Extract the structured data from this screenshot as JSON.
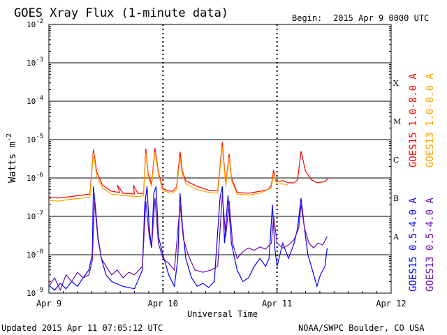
{
  "header": {
    "title": "GOES Xray Flux (1-minute data)",
    "begin_label": "Begin:",
    "begin_value": "2015 Apr 9 0000 UTC"
  },
  "footer": {
    "updated": "Updated 2015 Apr 11 07:05:12 UTC",
    "credit": "NOAA/SWPC Boulder, CO USA"
  },
  "chart_data": {
    "type": "line",
    "title": "GOES Xray Flux (1-minute data)",
    "xlabel": "Universal Time",
    "ylabel": "Watts m",
    "ylabel_superscript": "-2",
    "yscale": "log",
    "ylim": [
      1e-09,
      0.01
    ],
    "xlim_days": [
      0,
      3
    ],
    "y_ticks": [
      {
        "value": 1e-09,
        "base": "10",
        "exp": "-9"
      },
      {
        "value": 1e-08,
        "base": "10",
        "exp": "-8"
      },
      {
        "value": 1e-07,
        "base": "10",
        "exp": "-7"
      },
      {
        "value": 1e-06,
        "base": "10",
        "exp": "-6"
      },
      {
        "value": 1e-05,
        "base": "10",
        "exp": "-5"
      },
      {
        "value": 0.0001,
        "base": "10",
        "exp": "-4"
      },
      {
        "value": 0.001,
        "base": "10",
        "exp": "-3"
      },
      {
        "value": 0.01,
        "base": "10",
        "exp": "-2"
      }
    ],
    "x_ticks": [
      {
        "day": 0,
        "label": "Apr 9"
      },
      {
        "day": 1,
        "label": "Apr 10"
      },
      {
        "day": 2,
        "label": "Apr 11"
      },
      {
        "day": 3,
        "label": "Apr 12"
      }
    ],
    "flare_classes": [
      {
        "label": "A",
        "value": 3e-08
      },
      {
        "label": "B",
        "value": 3e-07
      },
      {
        "label": "C",
        "value": 3e-06
      },
      {
        "label": "M",
        "value": 3e-05
      },
      {
        "label": "X",
        "value": 0.0003
      }
    ],
    "series": [
      {
        "name": "GOES15 1.0-8.0 A",
        "color": "#ff0000",
        "points": [
          [
            0,
            3.2e-07
          ],
          [
            0.08,
            3e-07
          ],
          [
            0.2,
            3.3e-07
          ],
          [
            0.3,
            3.6e-07
          ],
          [
            0.36,
            3.8e-07
          ],
          [
            0.39,
            5.5e-06
          ],
          [
            0.42,
            1.4e-06
          ],
          [
            0.47,
            6.5e-07
          ],
          [
            0.55,
            4.5e-07
          ],
          [
            0.62,
            4.2e-07
          ],
          [
            0.6,
            6.5e-07
          ],
          [
            0.65,
            4e-07
          ],
          [
            0.75,
            3.8e-07
          ],
          [
            0.74,
            6.5e-07
          ],
          [
            0.78,
            4e-07
          ],
          [
            0.83,
            3.9e-07
          ],
          [
            0.85,
            5.8e-06
          ],
          [
            0.87,
            1.3e-06
          ],
          [
            0.9,
            7e-07
          ],
          [
            0.93,
            6e-06
          ],
          [
            0.96,
            1.4e-06
          ],
          [
            1.0,
            5.2e-07
          ],
          [
            1.05,
            4.6e-07
          ],
          [
            1.08,
            4.5e-07
          ],
          [
            1.1,
            5e-07
          ],
          [
            1.12,
            6e-07
          ],
          [
            1.15,
            4.8e-06
          ],
          [
            1.17,
            1.5e-06
          ],
          [
            1.2,
            8.5e-07
          ],
          [
            1.3,
            6e-07
          ],
          [
            1.4,
            4.8e-07
          ],
          [
            1.48,
            4.6e-07
          ],
          [
            1.52,
            8.5e-06
          ],
          [
            1.55,
            7e-07
          ],
          [
            1.58,
            4.2e-06
          ],
          [
            1.6,
            1e-06
          ],
          [
            1.65,
            4.2e-07
          ],
          [
            1.75,
            4e-07
          ],
          [
            1.85,
            4.5e-07
          ],
          [
            1.92,
            5e-07
          ],
          [
            1.95,
            6.5e-07
          ],
          [
            1.97,
            1.6e-06
          ],
          [
            1.99,
            8e-07
          ],
          [
            2.05,
            8.5e-07
          ],
          [
            2.1,
            7.5e-07
          ],
          [
            2.15,
            7.5e-07
          ],
          [
            2.18,
            9e-07
          ],
          [
            2.21,
            5e-06
          ],
          [
            2.25,
            1.5e-06
          ],
          [
            2.3,
            9e-07
          ],
          [
            2.35,
            7.5e-07
          ],
          [
            2.42,
            8e-07
          ],
          [
            2.45,
            1e-06
          ]
        ]
      },
      {
        "name": "GOES13 1.0-8.0 A",
        "color": "#ffa500",
        "points": [
          [
            0,
            2.6e-07
          ],
          [
            0.08,
            2.5e-07
          ],
          [
            0.2,
            2.8e-07
          ],
          [
            0.3,
            3e-07
          ],
          [
            0.36,
            3.2e-07
          ],
          [
            0.39,
            4.5e-06
          ],
          [
            0.42,
            1.1e-06
          ],
          [
            0.47,
            5.5e-07
          ],
          [
            0.55,
            3.8e-07
          ],
          [
            0.65,
            3.5e-07
          ],
          [
            0.75,
            3.3e-07
          ],
          [
            0.83,
            3.4e-07
          ],
          [
            0.85,
            4.5e-06
          ],
          [
            0.87,
            1.1e-06
          ],
          [
            0.9,
            6e-07
          ],
          [
            0.93,
            4.8e-06
          ],
          [
            0.96,
            1.2e-06
          ],
          [
            1.0,
            4.6e-07
          ],
          [
            1.08,
            4e-07
          ],
          [
            1.12,
            5e-07
          ],
          [
            1.15,
            3.5e-06
          ],
          [
            1.17,
            1.2e-06
          ],
          [
            1.2,
            7e-07
          ],
          [
            1.3,
            5e-07
          ],
          [
            1.4,
            4.2e-07
          ],
          [
            1.48,
            4e-07
          ],
          [
            1.52,
            6.5e-06
          ],
          [
            1.55,
            6e-07
          ],
          [
            1.58,
            3.5e-06
          ],
          [
            1.6,
            8.5e-07
          ],
          [
            1.65,
            3.8e-07
          ],
          [
            1.75,
            3.6e-07
          ],
          [
            1.85,
            4e-07
          ],
          [
            1.95,
            5.5e-07
          ],
          [
            1.97,
            1.3e-06
          ],
          [
            2.0,
            7e-07
          ],
          [
            2.05,
            7e-07
          ],
          [
            2.1,
            6.5e-07
          ]
        ]
      },
      {
        "name": "GOES15 0.5-4.0 A",
        "color": "#0000ff",
        "points": [
          [
            0,
            1.6e-09
          ],
          [
            0.05,
            1.2e-09
          ],
          [
            0.1,
            1.8e-09
          ],
          [
            0.15,
            1.3e-09
          ],
          [
            0.2,
            2e-09
          ],
          [
            0.25,
            1.5e-09
          ],
          [
            0.3,
            2.5e-09
          ],
          [
            0.35,
            4e-09
          ],
          [
            0.38,
            1e-08
          ],
          [
            0.39,
            6e-07
          ],
          [
            0.41,
            1.5e-07
          ],
          [
            0.43,
            3e-08
          ],
          [
            0.46,
            8e-09
          ],
          [
            0.5,
            3e-09
          ],
          [
            0.55,
            2e-09
          ],
          [
            0.65,
            1.5e-09
          ],
          [
            0.75,
            1.3e-09
          ],
          [
            0.82,
            4e-09
          ],
          [
            0.84,
            2e-07
          ],
          [
            0.86,
            6e-07
          ],
          [
            0.88,
            5e-08
          ],
          [
            0.9,
            1.5e-08
          ],
          [
            0.92,
            4e-07
          ],
          [
            0.94,
            6e-07
          ],
          [
            0.96,
            3e-08
          ],
          [
            1.0,
            1e-08
          ],
          [
            1.05,
            3e-09
          ],
          [
            1.1,
            1.5e-09
          ],
          [
            1.13,
            8e-09
          ],
          [
            1.15,
            4e-07
          ],
          [
            1.17,
            6e-08
          ],
          [
            1.2,
            8e-09
          ],
          [
            1.25,
            2.5e-09
          ],
          [
            1.3,
            1.5e-09
          ],
          [
            1.35,
            1.8e-09
          ],
          [
            1.4,
            1.4e-09
          ],
          [
            1.45,
            2e-09
          ],
          [
            1.5,
            3e-07
          ],
          [
            1.52,
            6e-07
          ],
          [
            1.54,
            2e-08
          ],
          [
            1.57,
            3.5e-07
          ],
          [
            1.6,
            2e-08
          ],
          [
            1.65,
            4e-09
          ],
          [
            1.7,
            2e-09
          ],
          [
            1.75,
            2.5e-09
          ],
          [
            1.8,
            5e-09
          ],
          [
            1.85,
            8e-09
          ],
          [
            1.9,
            5e-09
          ],
          [
            1.93,
            8e-09
          ],
          [
            1.96,
            2e-07
          ],
          [
            1.98,
            1.5e-08
          ],
          [
            2.0,
            5e-09
          ],
          [
            2.05,
            2e-08
          ],
          [
            2.1,
            8e-09
          ],
          [
            2.15,
            2e-08
          ],
          [
            2.18,
            5e-08
          ],
          [
            2.21,
            3e-07
          ],
          [
            2.24,
            5e-08
          ],
          [
            2.27,
            1e-08
          ],
          [
            2.3,
            5e-09
          ],
          [
            2.35,
            1.5e-09
          ],
          [
            2.38,
            3e-09
          ],
          [
            2.42,
            5e-09
          ],
          [
            2.44,
            1.5e-08
          ]
        ]
      },
      {
        "name": "GOES13 0.5-4.0 A",
        "color": "#6a0dad",
        "points": [
          [
            0,
            1.5e-09
          ],
          [
            0.05,
            2.5e-09
          ],
          [
            0.1,
            1.2e-09
          ],
          [
            0.15,
            3e-09
          ],
          [
            0.2,
            2e-09
          ],
          [
            0.25,
            3.5e-09
          ],
          [
            0.3,
            2.5e-09
          ],
          [
            0.35,
            3e-09
          ],
          [
            0.38,
            7e-09
          ],
          [
            0.4,
            2.5e-07
          ],
          [
            0.43,
            2.5e-08
          ],
          [
            0.46,
            8e-09
          ],
          [
            0.5,
            5e-09
          ],
          [
            0.55,
            3e-09
          ],
          [
            0.6,
            4e-09
          ],
          [
            0.65,
            2.5e-09
          ],
          [
            0.7,
            3.5e-09
          ],
          [
            0.75,
            3e-09
          ],
          [
            0.82,
            5e-09
          ],
          [
            0.85,
            2.5e-07
          ],
          [
            0.88,
            3e-08
          ],
          [
            0.9,
            1.5e-08
          ],
          [
            0.93,
            3e-07
          ],
          [
            0.96,
            2e-08
          ],
          [
            1.0,
            8e-09
          ],
          [
            1.05,
            6e-09
          ],
          [
            1.1,
            4e-09
          ],
          [
            1.15,
            2e-07
          ],
          [
            1.18,
            2.5e-08
          ],
          [
            1.22,
            1e-08
          ],
          [
            1.28,
            4e-09
          ],
          [
            1.35,
            3.5e-09
          ],
          [
            1.42,
            4e-09
          ],
          [
            1.48,
            5e-09
          ],
          [
            1.52,
            3.5e-07
          ],
          [
            1.55,
            3e-08
          ],
          [
            1.58,
            2.5e-07
          ],
          [
            1.61,
            2e-08
          ],
          [
            1.65,
            8e-09
          ],
          [
            1.7,
            1.2e-08
          ],
          [
            1.75,
            1.5e-08
          ],
          [
            1.8,
            1.3e-08
          ],
          [
            1.85,
            1.6e-08
          ],
          [
            1.9,
            1.4e-08
          ],
          [
            1.95,
            2e-08
          ],
          [
            1.97,
            1e-07
          ],
          [
            2.0,
            2e-08
          ],
          [
            2.05,
            1.5e-08
          ],
          [
            2.1,
            1.8e-08
          ],
          [
            2.15,
            2.5e-08
          ],
          [
            2.19,
            5e-08
          ],
          [
            2.21,
            2e-07
          ],
          [
            2.24,
            5e-08
          ],
          [
            2.28,
            2e-08
          ],
          [
            2.32,
            1.5e-08
          ],
          [
            2.36,
            2e-08
          ],
          [
            2.4,
            1.8e-08
          ],
          [
            2.44,
            3e-08
          ]
        ]
      }
    ]
  }
}
